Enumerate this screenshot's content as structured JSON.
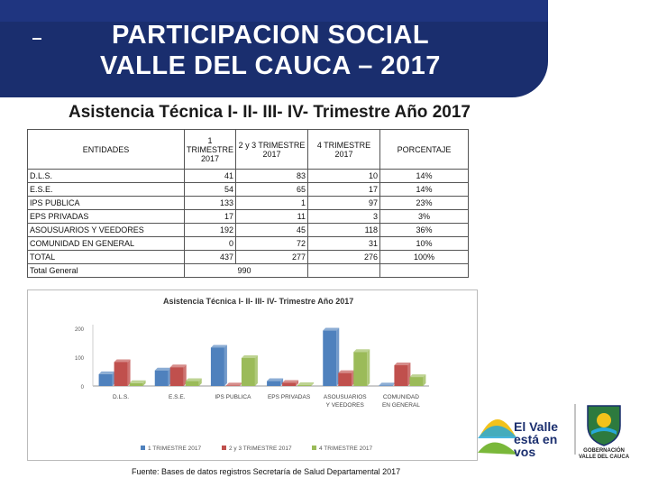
{
  "header": {
    "dash": "-",
    "title_line1": "PARTICIPACION SOCIAL",
    "title_line2": "VALLE DEL CAUCA – 2017",
    "subtitle": "Asistencia Técnica I- II- III- IV- Trimestre Año 2017"
  },
  "table": {
    "headers": [
      "ENTIDADES",
      "1 TRIMESTRE 2017",
      "2 y 3 TRIMESTRE 2017",
      "4 TRIMESTRE 2017",
      "PORCENTAJE"
    ],
    "rows": [
      {
        "entity": "D.L.S.",
        "t1": "41",
        "t23": "83",
        "t4": "10",
        "pct": "14%"
      },
      {
        "entity": "E.S.E.",
        "t1": "54",
        "t23": "65",
        "t4": "17",
        "pct": "14%"
      },
      {
        "entity": "IPS PUBLICA",
        "t1": "133",
        "t23": "1",
        "t4": "97",
        "pct": "23%"
      },
      {
        "entity": "EPS PRIVADAS",
        "t1": "17",
        "t23": "11",
        "t4": "3",
        "pct": "3%"
      },
      {
        "entity": "ASOUSUARIOS Y VEEDORES",
        "t1": "192",
        "t23": "45",
        "t4": "118",
        "pct": "36%"
      },
      {
        "entity": "COMUNIDAD EN GENERAL",
        "t1": "0",
        "t23": "72",
        "t4": "31",
        "pct": "10%"
      },
      {
        "entity": "TOTAL",
        "t1": "437",
        "t23": "277",
        "t4": "276",
        "pct": "100%"
      }
    ],
    "total_general_label": "Total General",
    "total_general_value": "990"
  },
  "chart_data": {
    "type": "bar",
    "title": "Asistencia Técnica I- II- III- IV- Trimestre Año 2017",
    "categories": [
      "D.L.S.",
      "E.S.E.",
      "IPS PUBLICA",
      "EPS PRIVADAS",
      "ASOUSUARIOS Y VEEDORES",
      "COMUNIDAD EN GENERAL"
    ],
    "category_lines": [
      [
        "D.L.S."
      ],
      [
        "E.S.E."
      ],
      [
        "IPS PUBLICA"
      ],
      [
        "EPS PRIVADAS"
      ],
      [
        "ASOUSUARIOS",
        "Y VEEDORES"
      ],
      [
        "COMUNIDAD",
        "EN GENERAL"
      ]
    ],
    "series": [
      {
        "name": "1 TRIMESTRE 2017",
        "values": [
          41,
          54,
          133,
          17,
          192,
          0
        ],
        "color": "#4f81bd"
      },
      {
        "name": "2 y 3 TRIMESTRE 2017",
        "values": [
          83,
          65,
          1,
          11,
          45,
          72
        ],
        "color": "#c0504d"
      },
      {
        "name": "4 TRIMESTRE 2017",
        "values": [
          10,
          17,
          97,
          3,
          118,
          31
        ],
        "color": "#9bbb59"
      }
    ],
    "yticks": [
      0,
      100,
      200
    ],
    "ylim": [
      0,
      200
    ],
    "legend": "bottom",
    "grid": false
  },
  "footer": {
    "source": "Fuente: Bases de datos registros Secretaría de Salud Departamental 2017"
  },
  "logos": {
    "valle_line1": "El Valle",
    "valle_line2": "está en",
    "valle_line3": "vos",
    "gob_line1": "GOBERNACIÓN",
    "gob_line2": "VALLE DEL CAUCA"
  }
}
